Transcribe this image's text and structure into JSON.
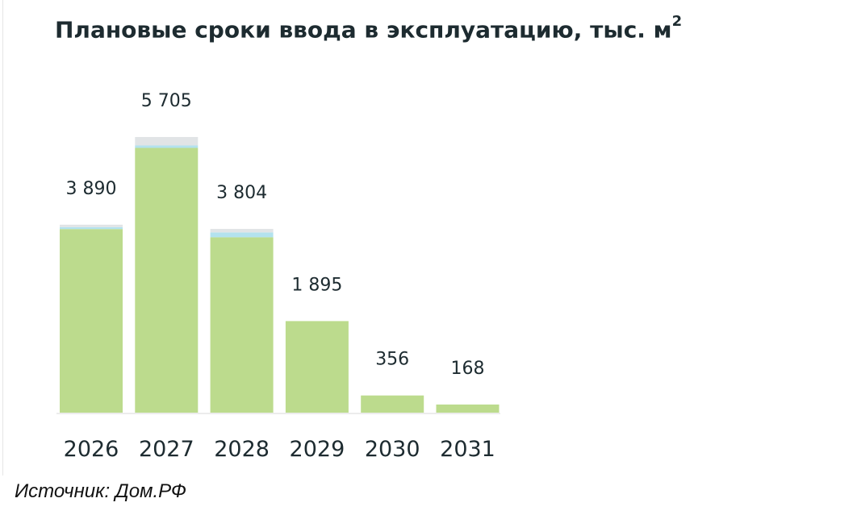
{
  "title": {
    "text": "Плановые сроки ввода в эксплуатацию, тыс. м",
    "superscript": "2"
  },
  "source": "Источник: Дом.РФ",
  "colors": {
    "main": "#bcdb8d",
    "segment_blue": "#b3e2ee",
    "segment_gray": "#e1e4e6",
    "label": "#1d2b30",
    "baseline": "#d9d9d9"
  },
  "chart_data": {
    "type": "bar",
    "categories": [
      "2026",
      "2027",
      "2028",
      "2029",
      "2030",
      "2031"
    ],
    "values": [
      3890,
      5705,
      3804,
      1895,
      356,
      168
    ],
    "value_labels": [
      "3 890",
      "5 705",
      "3 804",
      "1 895",
      "356",
      "168"
    ],
    "stacked_components": {
      "main": [
        3800,
        5480,
        3630,
        1895,
        356,
        168
      ],
      "blue": [
        40,
        50,
        100,
        0,
        0,
        0
      ],
      "gray": [
        50,
        175,
        74,
        0,
        0,
        0
      ]
    },
    "title": "Плановые сроки ввода в эксплуатацию, тыс. м²",
    "xlabel": "",
    "ylabel": "",
    "ylim": [
      0,
      5705
    ],
    "grid": false,
    "legend": "none"
  }
}
